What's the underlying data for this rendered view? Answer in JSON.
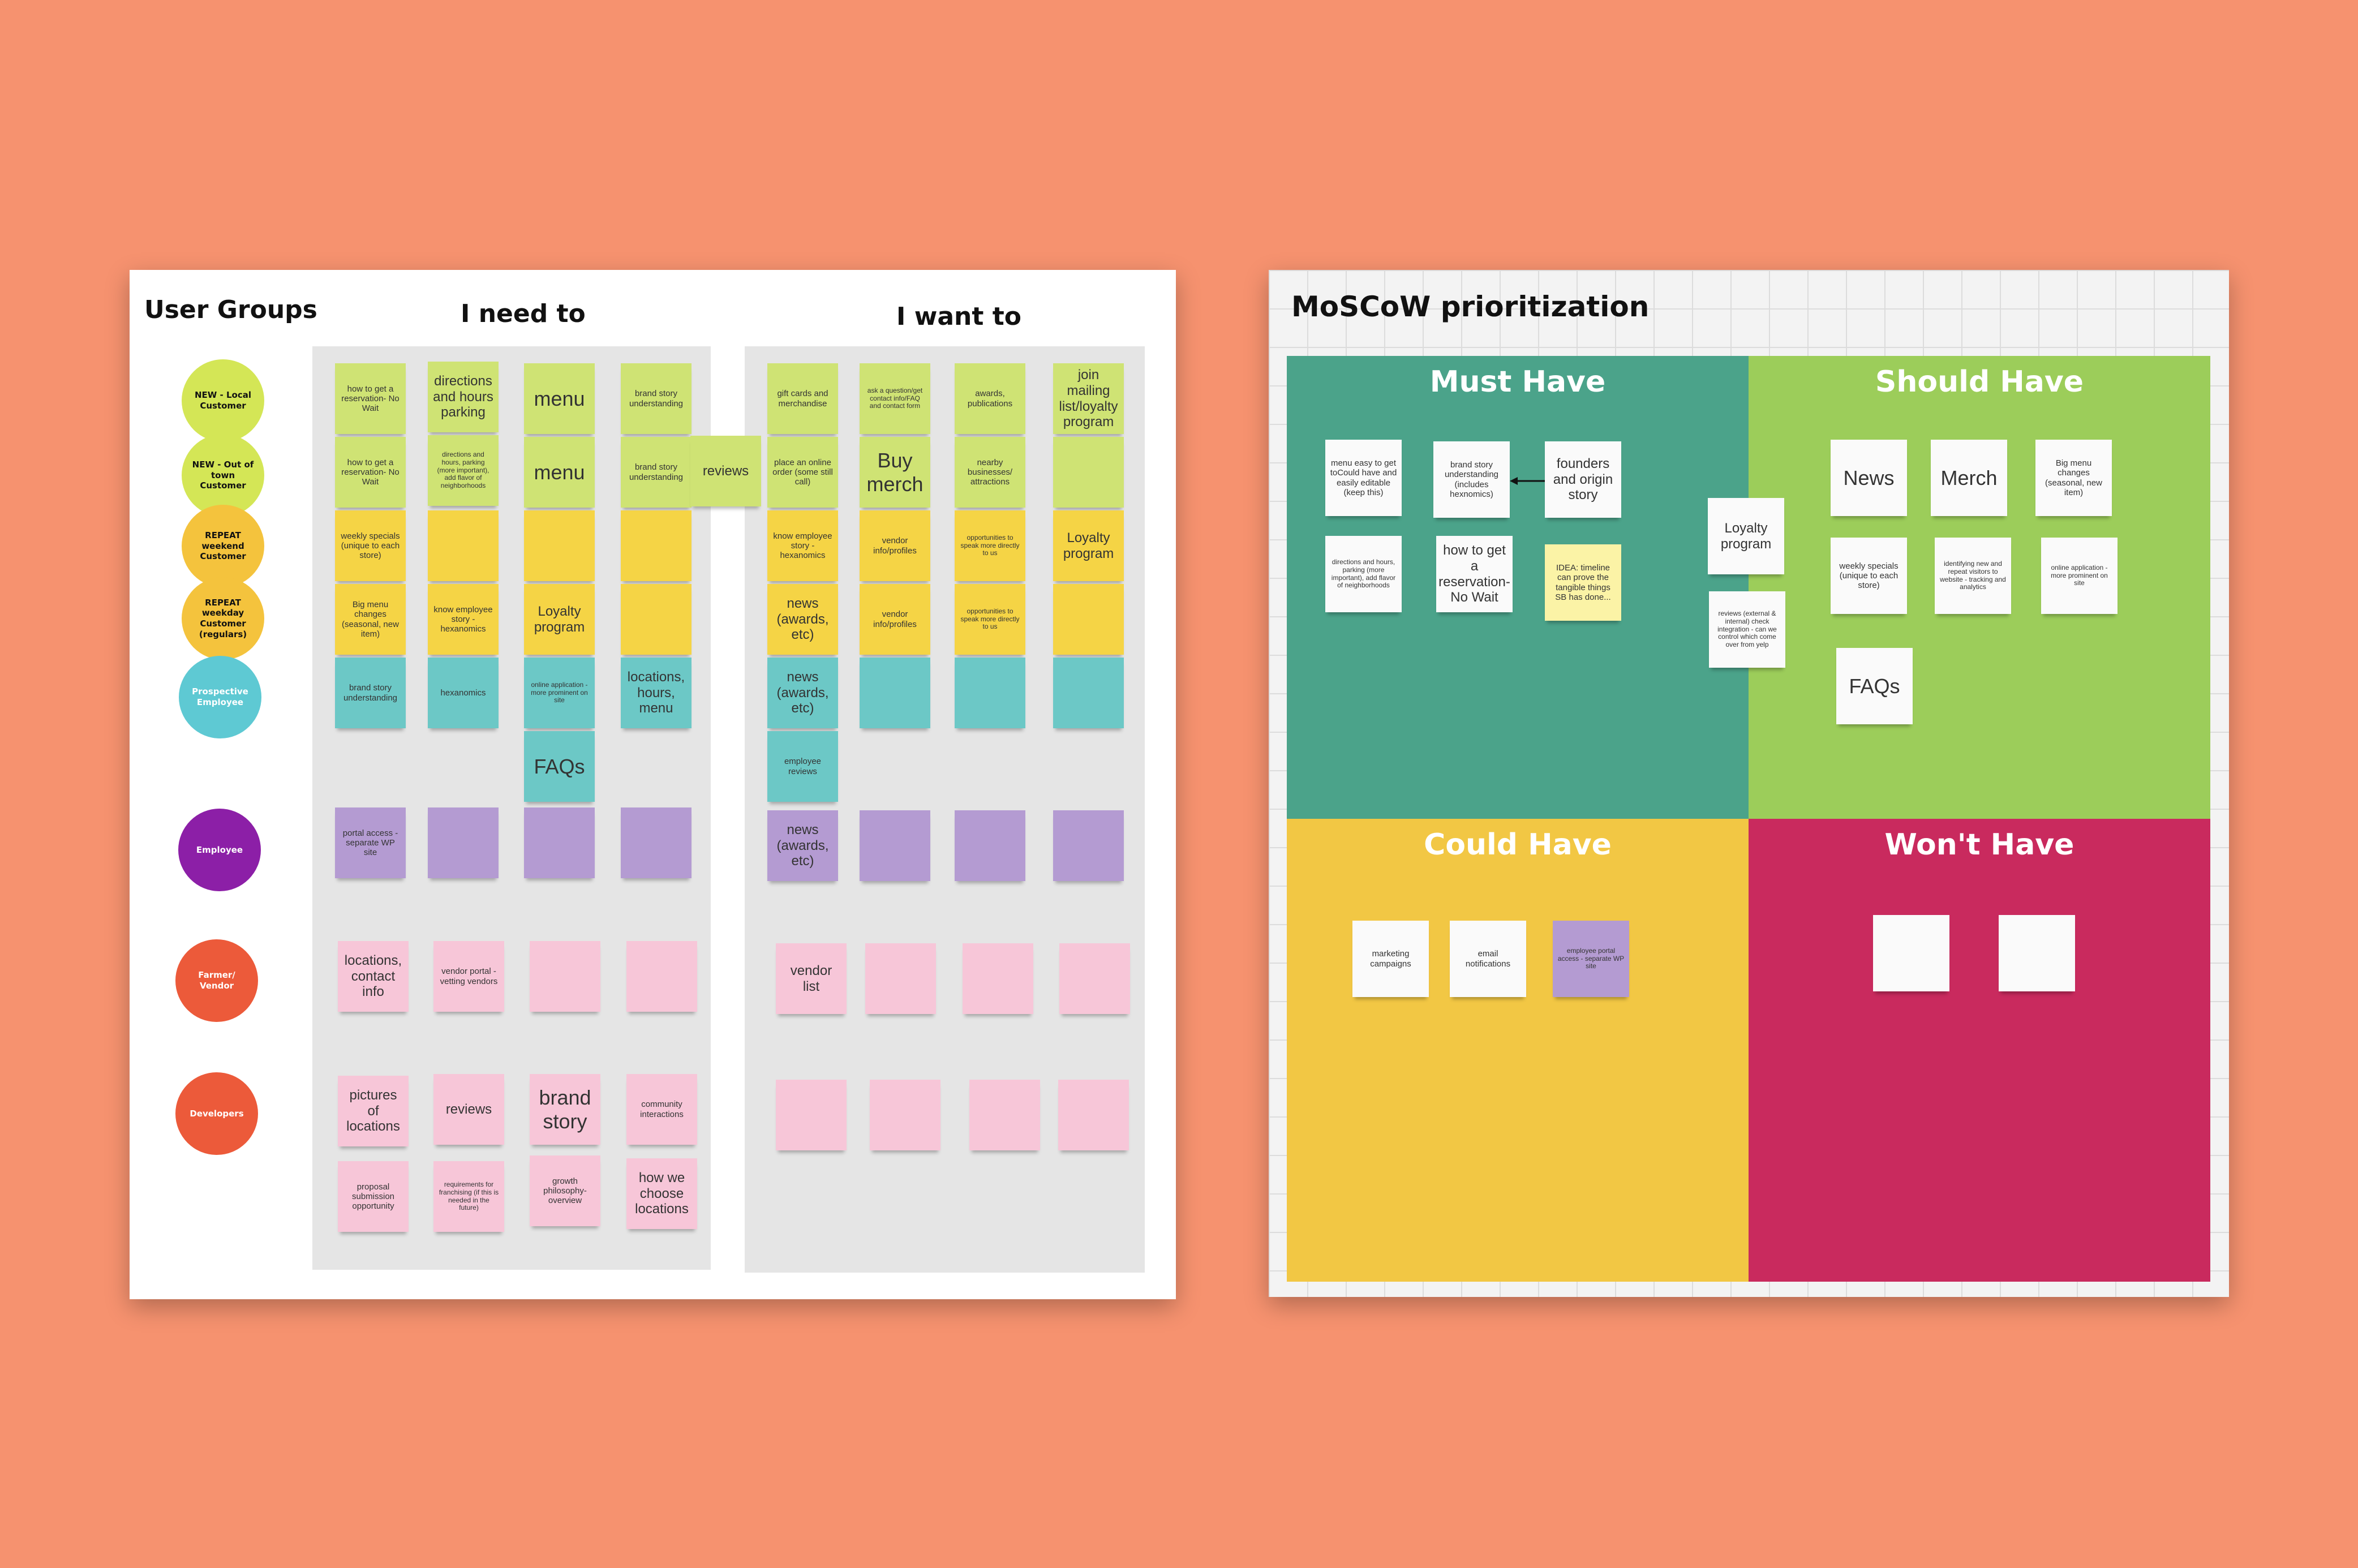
{
  "colors": {
    "background": "#f6926f",
    "lime": "#cfe374",
    "yellow": "#f5d445",
    "teal": "#6cc8c6",
    "purple": "#b49bd2",
    "pink": "#f7c6d8",
    "white": "#fafafa",
    "must_have": "#4ba38a",
    "should_have": "#9ccd5a",
    "could_have": "#f2c744",
    "wont_have": "#c92a5e"
  },
  "left_board": {
    "user_groups_title": "User Groups",
    "need_title": "I need to",
    "want_title": "I want to",
    "groups": [
      {
        "label": "NEW - Local Customer",
        "color": "#d4e656",
        "text_color": "#111111"
      },
      {
        "label": "NEW - Out of town Customer",
        "color": "#d4e656",
        "text_color": "#111111"
      },
      {
        "label": "REPEAT weekend Customer",
        "color": "#f4c33d",
        "text_color": "#111111"
      },
      {
        "label": "REPEAT weekday Customer (regulars)",
        "color": "#f4c33d",
        "text_color": "#111111"
      },
      {
        "label": "Prospective Employee",
        "color": "#5ec9d3",
        "text_color": "#ffffff"
      },
      {
        "label": "Employee",
        "color": "#8c1fa7",
        "text_color": "#ffffff"
      },
      {
        "label": "Farmer/ Vendor",
        "color": "#ec5a3a",
        "text_color": "#ffffff"
      },
      {
        "label": "Developers",
        "color": "#ec5a3a",
        "text_color": "#ffffff"
      }
    ],
    "notes": [
      {
        "text": "how to get a reservation- No Wait",
        "color": "lime",
        "size": "small"
      },
      {
        "text": "directions and hours parking",
        "color": "lime",
        "size": "medium"
      },
      {
        "text": "menu",
        "color": "lime",
        "size": "large"
      },
      {
        "text": "brand story understanding",
        "color": "lime",
        "size": "small"
      },
      {
        "text": "gift cards and merchandise",
        "color": "lime",
        "size": "small"
      },
      {
        "text": "ask a question/get contact info/FAQ and contact form",
        "color": "lime",
        "size": "tiny"
      },
      {
        "text": "awards, publications",
        "color": "lime",
        "size": "small"
      },
      {
        "text": "join mailing list/loyalty program",
        "color": "lime",
        "size": "medium"
      },
      {
        "text": "how to get a reservation- No Wait",
        "color": "lime",
        "size": "small"
      },
      {
        "text": "directions and hours, parking (more important), add flavor of neighborhoods",
        "color": "lime",
        "size": "tiny"
      },
      {
        "text": "menu",
        "color": "lime",
        "size": "large"
      },
      {
        "text": "brand story understanding",
        "color": "lime",
        "size": "small"
      },
      {
        "text": "reviews",
        "color": "lime",
        "size": "medium"
      },
      {
        "text": "place an online order (some still call)",
        "color": "lime",
        "size": "small"
      },
      {
        "text": "Buy merch",
        "color": "lime",
        "size": "large"
      },
      {
        "text": "nearby businesses/ attractions",
        "color": "lime",
        "size": "small"
      },
      {
        "text": "",
        "color": "lime",
        "size": "small"
      },
      {
        "text": "weekly specials (unique to each store)",
        "color": "yellow",
        "size": "small"
      },
      {
        "text": "",
        "color": "yellow",
        "size": "small"
      },
      {
        "text": "",
        "color": "yellow",
        "size": "small"
      },
      {
        "text": "",
        "color": "yellow",
        "size": "small"
      },
      {
        "text": "know employee story - hexanomics",
        "color": "yellow",
        "size": "small"
      },
      {
        "text": "vendor info/profiles",
        "color": "yellow",
        "size": "small"
      },
      {
        "text": "opportunities to speak more directly to us",
        "color": "yellow",
        "size": "tiny"
      },
      {
        "text": "Loyalty program",
        "color": "yellow",
        "size": "medium"
      },
      {
        "text": "Big menu changes (seasonal, new item)",
        "color": "yellow",
        "size": "small"
      },
      {
        "text": "know employee story - hexanomics",
        "color": "yellow",
        "size": "small"
      },
      {
        "text": "Loyalty program",
        "color": "yellow",
        "size": "medium"
      },
      {
        "text": "",
        "color": "yellow",
        "size": "small"
      },
      {
        "text": "news (awards, etc)",
        "color": "yellow",
        "size": "medium"
      },
      {
        "text": "vendor info/profiles",
        "color": "yellow",
        "size": "small"
      },
      {
        "text": "opportunities to speak more directly to us",
        "color": "yellow",
        "size": "tiny"
      },
      {
        "text": "",
        "color": "yellow",
        "size": "small"
      },
      {
        "text": "brand story understanding",
        "color": "teal",
        "size": "small"
      },
      {
        "text": "hexanomics",
        "color": "teal",
        "size": "small"
      },
      {
        "text": "online application - more prominent on site",
        "color": "teal",
        "size": "tiny"
      },
      {
        "text": "locations, hours, menu",
        "color": "teal",
        "size": "medium"
      },
      {
        "text": "news (awards, etc)",
        "color": "teal",
        "size": "medium"
      },
      {
        "text": "",
        "color": "teal",
        "size": "small"
      },
      {
        "text": "",
        "color": "teal",
        "size": "small"
      },
      {
        "text": "",
        "color": "teal",
        "size": "small"
      },
      {
        "text": "FAQs",
        "color": "teal",
        "size": "large"
      },
      {
        "text": "employee reviews",
        "color": "teal",
        "size": "small"
      },
      {
        "text": "portal access - separate WP site",
        "color": "purple",
        "size": "small"
      },
      {
        "text": "",
        "color": "purple",
        "size": "small"
      },
      {
        "text": "",
        "color": "purple",
        "size": "small"
      },
      {
        "text": "",
        "color": "purple",
        "size": "small"
      },
      {
        "text": "news (awards, etc)",
        "color": "purple",
        "size": "medium"
      },
      {
        "text": "",
        "color": "purple",
        "size": "small"
      },
      {
        "text": "",
        "color": "purple",
        "size": "small"
      },
      {
        "text": "",
        "color": "purple",
        "size": "small"
      },
      {
        "text": "locations, contact info",
        "color": "pink",
        "size": "medium"
      },
      {
        "text": "vendor portal - vetting vendors",
        "color": "pink",
        "size": "small"
      },
      {
        "text": "",
        "color": "pink",
        "size": "small"
      },
      {
        "text": "",
        "color": "pink",
        "size": "small"
      },
      {
        "text": "vendor list",
        "color": "pink",
        "size": "medium"
      },
      {
        "text": "",
        "color": "pink",
        "size": "small"
      },
      {
        "text": "",
        "color": "pink",
        "size": "small"
      },
      {
        "text": "",
        "color": "pink",
        "size": "small"
      },
      {
        "text": "pictures of locations",
        "color": "pink",
        "size": "medium"
      },
      {
        "text": "reviews",
        "color": "pink",
        "size": "medium"
      },
      {
        "text": "brand story",
        "color": "pink",
        "size": "large"
      },
      {
        "text": "community interactions",
        "color": "pink",
        "size": "small"
      },
      {
        "text": "",
        "color": "pink",
        "size": "small"
      },
      {
        "text": "",
        "color": "pink",
        "size": "small"
      },
      {
        "text": "",
        "color": "pink",
        "size": "small"
      },
      {
        "text": "",
        "color": "pink",
        "size": "small"
      },
      {
        "text": "proposal submission opportunity",
        "color": "pink",
        "size": "small"
      },
      {
        "text": "requirements for franchising (if this is needed in the future)",
        "color": "pink",
        "size": "tiny"
      },
      {
        "text": "growth philosophy- overview",
        "color": "pink",
        "size": "small"
      },
      {
        "text": "how we choose locations",
        "color": "pink",
        "size": "medium"
      }
    ]
  },
  "right_board": {
    "title": "MoSCoW prioritization",
    "quadrants": {
      "must": "Must Have",
      "should": "Should Have",
      "could": "Could Have",
      "wont": "Won't Have"
    },
    "notes": [
      {
        "text": "menu easy to get toCould have and easily editable (keep this)",
        "color": "white",
        "size": "small"
      },
      {
        "text": "brand story understanding (includes hexnomics)",
        "color": "white",
        "size": "small"
      },
      {
        "text": "founders and origin story",
        "color": "white",
        "size": "medium"
      },
      {
        "text": "directions and hours, parking (more important), add flavor of neighborhoods",
        "color": "white",
        "size": "tiny"
      },
      {
        "text": "how to get a reservation- No Wait",
        "color": "white",
        "size": "medium"
      },
      {
        "text": "IDEA: timeline can prove the tangible things SB has done...",
        "color": "lightyellow",
        "size": "small"
      },
      {
        "text": "Loyalty program",
        "color": "white",
        "size": "medium"
      },
      {
        "text": "reviews (external & internal) check integration - can we control which come over from yelp",
        "color": "white",
        "size": "tiny"
      },
      {
        "text": "News",
        "color": "white",
        "size": "large"
      },
      {
        "text": "Merch",
        "color": "white",
        "size": "large"
      },
      {
        "text": "Big menu changes (seasonal, new item)",
        "color": "white",
        "size": "small"
      },
      {
        "text": "weekly specials (unique to each store)",
        "color": "white",
        "size": "small"
      },
      {
        "text": "identifying new and repeat visitors to website - tracking and analytics",
        "color": "white",
        "size": "tiny"
      },
      {
        "text": "online application - more prominent on site",
        "color": "white",
        "size": "tiny"
      },
      {
        "text": "FAQs",
        "color": "white",
        "size": "large"
      },
      {
        "text": "marketing campaigns",
        "color": "white",
        "size": "small"
      },
      {
        "text": "email notifications",
        "color": "white",
        "size": "small"
      },
      {
        "text": "employee portal access - separate WP site",
        "color": "purple",
        "size": "tiny"
      },
      {
        "text": "",
        "color": "white",
        "size": "small"
      },
      {
        "text": "",
        "color": "white",
        "size": "small"
      }
    ]
  }
}
